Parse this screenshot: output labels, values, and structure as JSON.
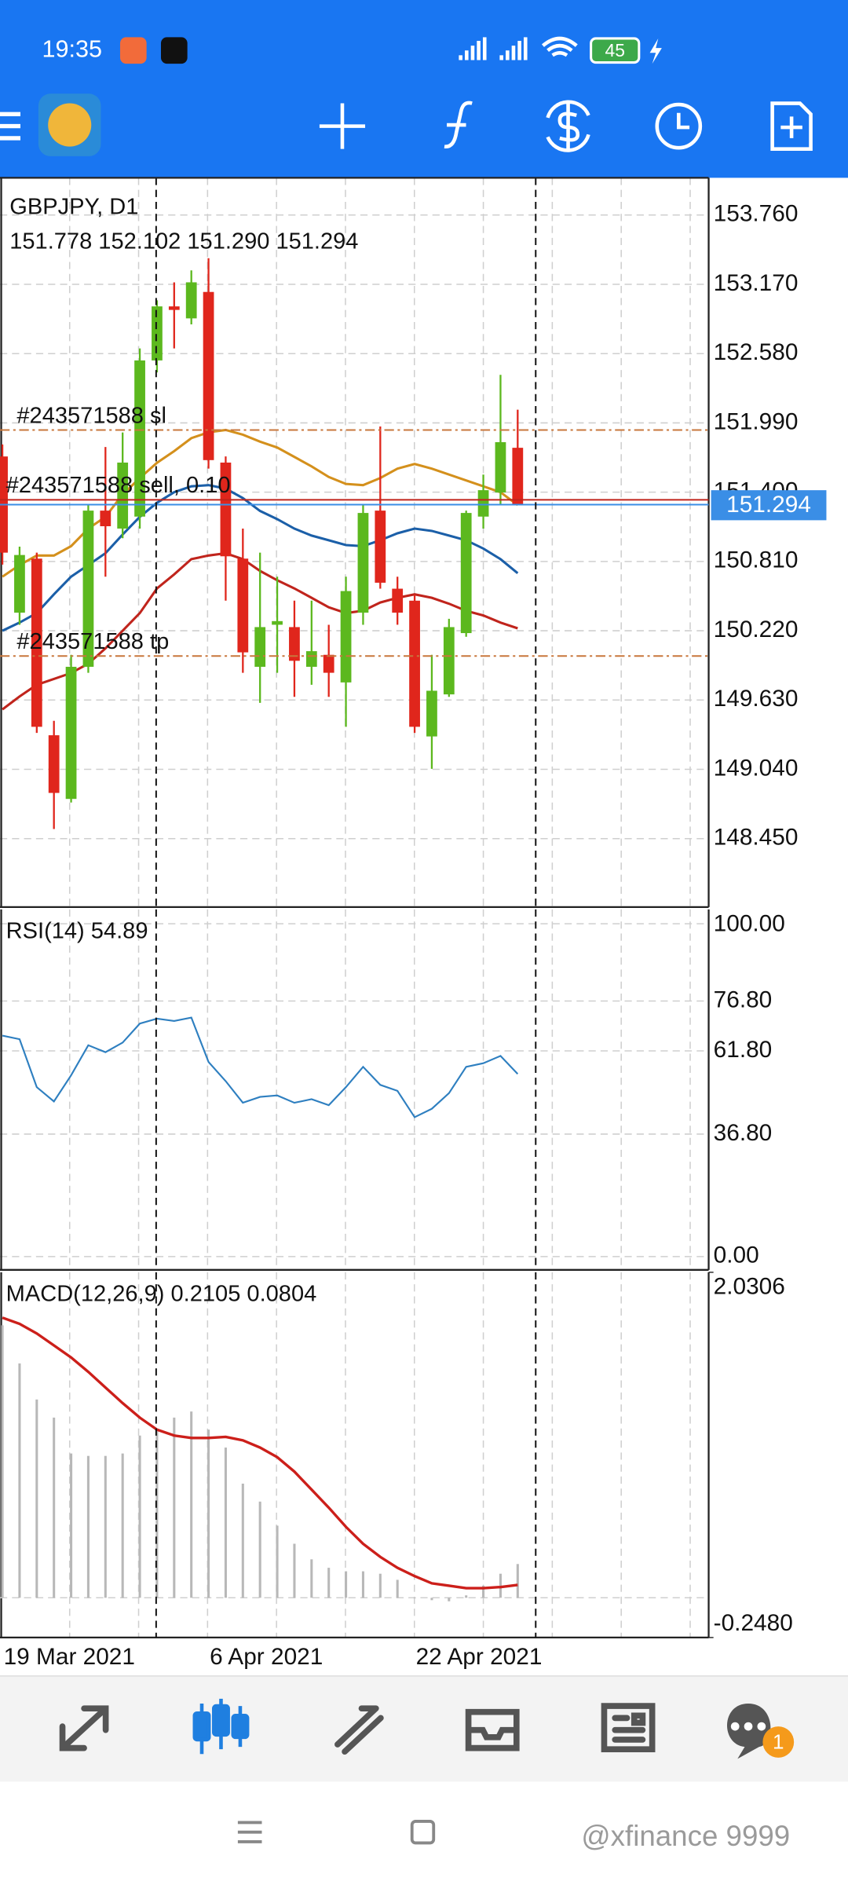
{
  "status_bar": {
    "time": "19:35",
    "battery": "45"
  },
  "chart_data": [
    {
      "type": "candlestick",
      "title": "GBPJPY, D1",
      "subtitle": "151.778 152.102 151.290 151.294",
      "categories": [
        "19 Mar 2021",
        null,
        null,
        null,
        null,
        null,
        null,
        null,
        null,
        null,
        null,
        null,
        "6 Apr 2021",
        null,
        null,
        null,
        null,
        null,
        null,
        null,
        null,
        null,
        null,
        null,
        "22 Apr 2021",
        null,
        null,
        null,
        null,
        null,
        null
      ],
      "open": [
        151.704,
        150.374,
        150.834,
        149.33,
        148.788,
        149.913,
        151.243,
        151.09,
        151.192,
        152.522,
        152.982,
        152.88,
        153.105,
        151.652,
        150.834,
        149.913,
        150.271,
        150.251,
        149.913,
        150.015,
        149.78,
        150.374,
        151.243,
        150.578,
        150.476,
        149.32,
        149.678,
        150.2,
        151.192,
        151.397,
        151.778
      ],
      "high": [
        151.806,
        150.936,
        150.885,
        149.453,
        150.015,
        151.294,
        151.785,
        151.908,
        152.624,
        153.034,
        153.187,
        153.289,
        153.392,
        151.704,
        151.09,
        150.885,
        150.68,
        150.476,
        150.476,
        150.271,
        150.68,
        151.294,
        151.959,
        150.68,
        150.527,
        150.015,
        150.322,
        151.243,
        151.55,
        152.399,
        152.102
      ],
      "low": [
        150.783,
        150.271,
        149.35,
        148.532,
        148.757,
        149.862,
        150.68,
        151.008,
        151.09,
        152.42,
        152.624,
        152.829,
        151.601,
        150.476,
        149.862,
        149.606,
        149.862,
        149.657,
        149.76,
        149.657,
        149.402,
        150.271,
        150.578,
        150.271,
        149.35,
        149.044,
        149.657,
        150.169,
        151.09,
        151.294,
        151.29
      ],
      "close": [
        150.885,
        150.865,
        149.402,
        148.839,
        149.913,
        151.243,
        151.11,
        151.652,
        152.522,
        152.982,
        152.952,
        153.187,
        151.673,
        150.854,
        150.036,
        150.251,
        150.302,
        149.964,
        150.046,
        149.862,
        150.558,
        151.223,
        150.629,
        150.374,
        149.402,
        149.709,
        150.251,
        151.223,
        151.417,
        151.826,
        151.294
      ],
      "up_color": "#5cb81e",
      "down_color": "#e0261c",
      "lines": [
        {
          "color": "#d4901c",
          "values": [
            150.68,
            150.78,
            150.86,
            150.86,
            150.94,
            151.09,
            151.19,
            151.38,
            151.52,
            151.65,
            151.75,
            151.86,
            151.91,
            151.93,
            151.89,
            151.83,
            151.78,
            151.7,
            151.62,
            151.53,
            151.47,
            151.46,
            151.52,
            151.6,
            151.64,
            151.6,
            151.55,
            151.5,
            151.45,
            151.4,
            151.29
          ]
        },
        {
          "color": "#1b5fa8",
          "values": [
            150.22,
            150.29,
            150.37,
            150.53,
            150.68,
            150.78,
            150.88,
            151.04,
            151.19,
            151.31,
            151.4,
            151.45,
            151.46,
            151.43,
            151.35,
            151.24,
            151.17,
            151.09,
            151.03,
            150.99,
            150.95,
            150.94,
            150.99,
            151.05,
            151.09,
            151.07,
            151.03,
            150.99,
            150.92,
            150.83,
            150.71
          ]
        },
        {
          "color": "#c0241c",
          "values": [
            149.55,
            149.66,
            149.76,
            149.81,
            149.86,
            149.94,
            150.07,
            150.22,
            150.37,
            150.58,
            150.7,
            150.83,
            150.86,
            150.88,
            150.83,
            150.73,
            150.65,
            150.58,
            150.5,
            150.42,
            150.37,
            150.39,
            150.46,
            150.5,
            150.53,
            150.5,
            150.45,
            150.39,
            150.35,
            150.29,
            150.24
          ]
        }
      ],
      "orders": [
        {
          "label": "#243571588 sl",
          "value": 151.929,
          "color": "#c8773c",
          "style": "dashdot"
        },
        {
          "label": "#243571588 sell, 0.10",
          "value": 151.335,
          "color": "#c0241c",
          "style": "solid"
        },
        {
          "label": "#243571588 tp",
          "value": 150.005,
          "color": "#c8773c",
          "style": "dashdot"
        }
      ],
      "price": 151.294,
      "price_color": "#3a8ee6",
      "ylim": [
        147.867,
        154.077
      ],
      "yticks": [
        {
          "value": 153.76,
          "label": "153.760"
        },
        {
          "value": 153.17,
          "label": "153.170"
        },
        {
          "value": 152.58,
          "label": "152.580"
        },
        {
          "value": 151.99,
          "label": "151.990"
        },
        {
          "value": 151.4,
          "label": "151.400"
        },
        {
          "value": 150.81,
          "label": "150.810"
        },
        {
          "value": 150.22,
          "label": "150.220"
        },
        {
          "value": 149.63,
          "label": "149.630"
        },
        {
          "value": 149.04,
          "label": "149.040"
        },
        {
          "value": 148.45,
          "label": "148.450"
        }
      ],
      "grid": true
    },
    {
      "type": "line",
      "title": "RSI(14) 54.89",
      "color": "#2e7fc0",
      "values": [
        66.4,
        65.3,
        50.9,
        46.6,
        54.5,
        63.5,
        61.4,
        64.3,
        70.0,
        71.5,
        70.8,
        71.8,
        58.5,
        52.7,
        46.2,
        48.0,
        48.4,
        46.2,
        47.3,
        45.5,
        50.9,
        57.0,
        51.6,
        49.8,
        41.9,
        44.4,
        49.1,
        57.0,
        58.1,
        60.3,
        54.89
      ],
      "ylim": [
        -4.0,
        104.3
      ],
      "yticks": [
        {
          "value": 100,
          "label": "100.00"
        },
        {
          "value": 76.8,
          "label": "76.80"
        },
        {
          "value": 61.8,
          "label": "61.80"
        },
        {
          "value": 36.8,
          "label": "36.80"
        },
        {
          "value": 0,
          "label": "0.00"
        }
      ],
      "grid": true
    },
    {
      "type": "bar",
      "title": "MACD(12,26,9) 0.2105 0.0804",
      "color": "#b8b8b8",
      "values": [
        1.7,
        1.462,
        1.237,
        1.124,
        0.9,
        0.885,
        0.885,
        0.9,
        1.012,
        1.049,
        1.124,
        1.162,
        1.049,
        0.937,
        0.712,
        0.6,
        0.45,
        0.337,
        0.24,
        0.187,
        0.165,
        0.165,
        0.15,
        0.112,
        0.0,
        -0.015,
        -0.022,
        0.015,
        0.075,
        0.15,
        0.2105
      ],
      "signal": {
        "color": "#cc1f1a",
        "values": [
          1.747,
          1.709,
          1.649,
          1.574,
          1.499,
          1.409,
          1.312,
          1.214,
          1.124,
          1.049,
          1.012,
          0.997,
          0.997,
          1.004,
          0.982,
          0.937,
          0.877,
          0.787,
          0.675,
          0.562,
          0.442,
          0.337,
          0.255,
          0.187,
          0.135,
          0.09,
          0.075,
          0.06,
          0.06,
          0.067,
          0.0804
        ]
      },
      "ylim": [
        -0.248,
        2.0306
      ],
      "yticks": [
        2.0306,
        {
          "value": -0.248,
          "label": "-0.2480"
        }
      ],
      "grid": false
    }
  ],
  "bottom_nav": {
    "badge": "1"
  },
  "watermark": "@xfinance 9999"
}
